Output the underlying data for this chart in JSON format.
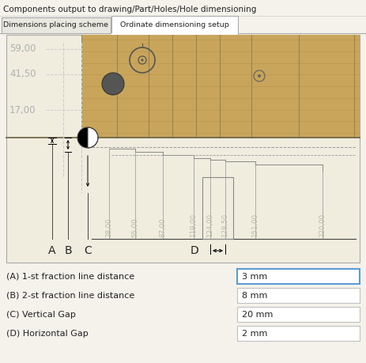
{
  "title": "Components output to drawing/Part/Holes/Hole dimensioning",
  "tab1": "Dimensions placing scheme",
  "tab2": "Ordinate dimensioning setup",
  "bg_color": "#f5f2ec",
  "diagram_bg": "#f0eddf",
  "wood_color_light": "#c8a55a",
  "wood_color_dark": "#b8954a",
  "ordinate_labels": [
    "28,00",
    "55,00",
    "87,00",
    "119,00",
    "124,00",
    "128,50",
    "151,00",
    "220,00"
  ],
  "y_labels": [
    "59,00",
    "41,50",
    "17,00"
  ],
  "labels_A_to_D": [
    "A",
    "B",
    "C",
    "D"
  ],
  "form_rows": [
    {
      "label": "(A) 1-st fraction line distance",
      "value": "3 mm",
      "active": true
    },
    {
      "label": "(B) 2-st fraction line distance",
      "value": "8 mm",
      "active": false
    },
    {
      "label": "(C) Vertical Gap",
      "value": "20 mm",
      "active": false
    },
    {
      "label": "(D) Horizontal Gap",
      "value": "2 mm",
      "active": false
    }
  ],
  "active_border": "#5b9bd5",
  "inactive_border": "#c0c0c0",
  "text_color_gray": "#b0b0b0",
  "text_color_dark": "#222222",
  "text_color_dim": "#b8b8a8"
}
